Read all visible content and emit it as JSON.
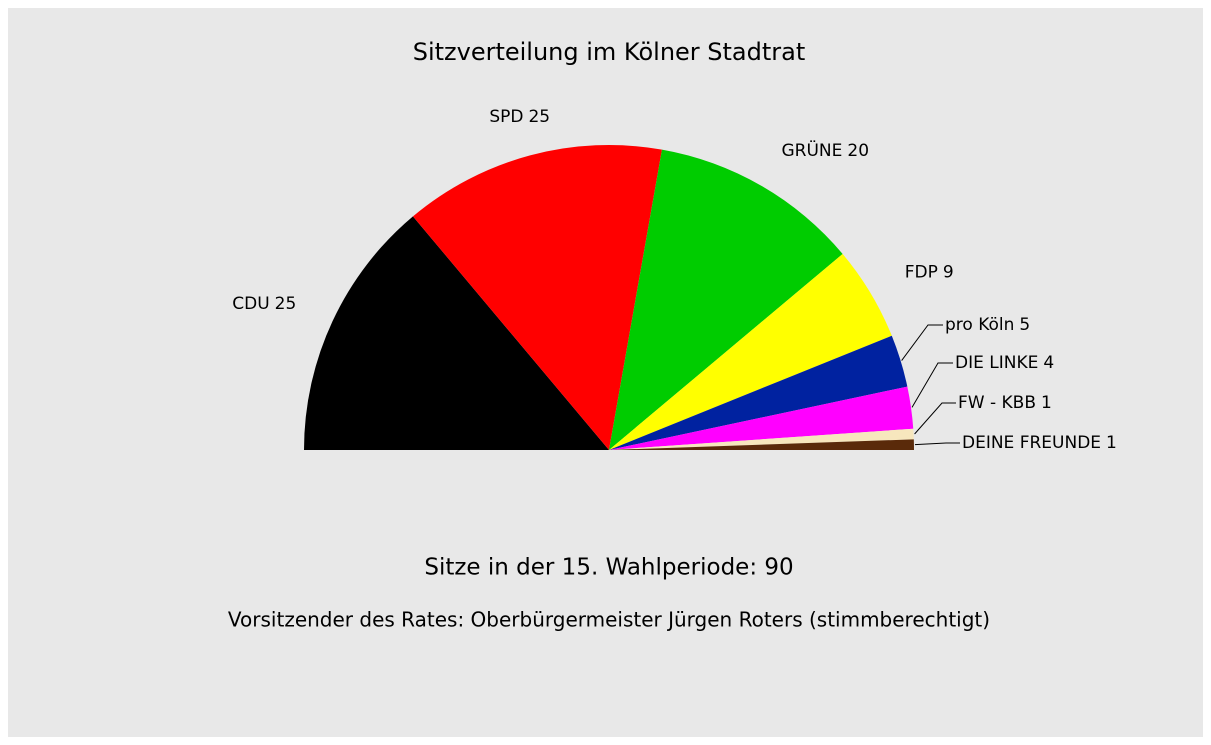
{
  "chart_data": {
    "type": "semicircle-pie",
    "title": "Sitzverteilung im Kölner Stadtrat",
    "categories": [
      "CDU",
      "SPD",
      "GRÜNE",
      "FDP",
      "pro Köln",
      "DIE LINKE",
      "FW - KBB",
      "DEINE FREUNDE"
    ],
    "values": [
      25,
      25,
      20,
      9,
      5,
      4,
      1,
      1
    ],
    "colors": [
      "#000000",
      "#ff0000",
      "#00cc00",
      "#ffff00",
      "#0022a0",
      "#ff00ff",
      "#f7e7bd",
      "#5a2a0a"
    ],
    "subtitle": "Sitze in der 15. Wahlperiode: 90",
    "note": "Vorsitzender des Rates: Oberbürgermeister Jürgen Roters (stimmberechtigt)"
  }
}
